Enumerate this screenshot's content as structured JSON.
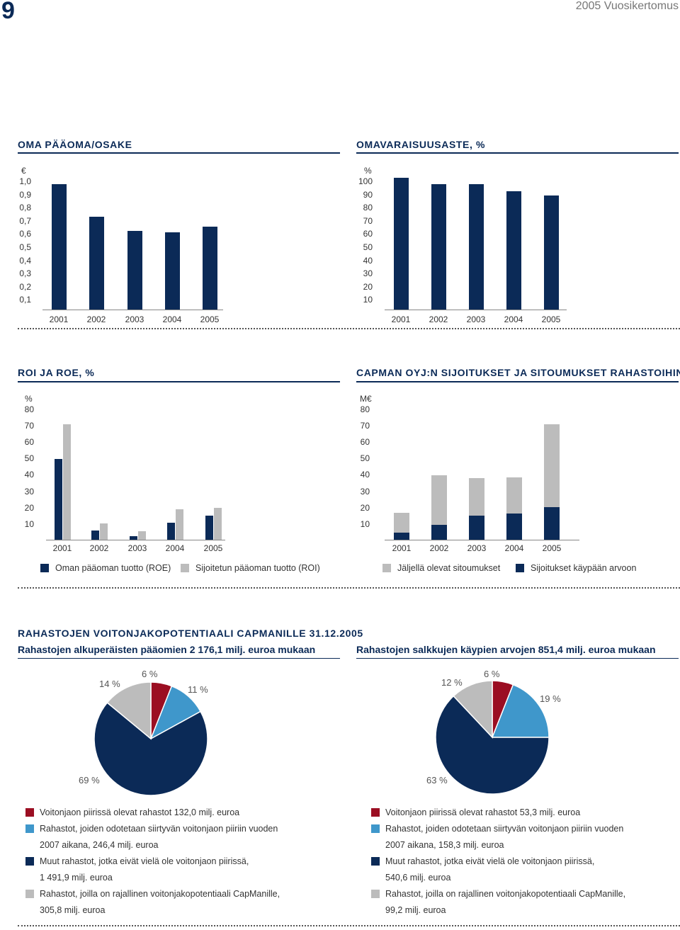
{
  "header": {
    "page_number": "9",
    "running_title": "2005 Vuosikertomus"
  },
  "colors": {
    "navy": "#0b2a57",
    "grey": "#bcbcbc",
    "red": "#9b0e22",
    "blue": "#3f97cb"
  },
  "chart_data": [
    {
      "type": "bar",
      "title": "OMA PÄÄOMA/OSAKE",
      "ylabel": "€",
      "y_ticks": [
        "1,0",
        "0,9",
        "0,8",
        "0,7",
        "0,6",
        "0,5",
        "0,4",
        "0,3",
        "0,2",
        "0,1"
      ],
      "categories": [
        "2001",
        "2002",
        "2003",
        "2004",
        "2005"
      ],
      "values": [
        0.92,
        0.68,
        0.58,
        0.57,
        0.61
      ],
      "ylim": [
        0,
        1.0
      ]
    },
    {
      "type": "bar",
      "title": "OMAVARAISUUSASTE, %",
      "ylabel": "%",
      "y_ticks": [
        "100",
        "90",
        "80",
        "70",
        "60",
        "50",
        "40",
        "30",
        "20",
        "10"
      ],
      "categories": [
        "2001",
        "2002",
        "2003",
        "2004",
        "2005"
      ],
      "values": [
        97,
        92,
        92,
        87,
        84
      ],
      "ylim": [
        0,
        100
      ]
    },
    {
      "type": "bar",
      "title": "ROI JA ROE, %",
      "ylabel": "%",
      "y_ticks": [
        "80",
        "70",
        "60",
        "50",
        "40",
        "30",
        "20",
        "10"
      ],
      "categories": [
        "2001",
        "2002",
        "2003",
        "2004",
        "2005"
      ],
      "series": [
        {
          "name": "Oman pääoman tuotto (ROE)",
          "values": [
            49,
            5.5,
            2,
            10.5,
            14.5
          ]
        },
        {
          "name": "Sijoitetun pääoman tuotto (ROI)",
          "values": [
            70,
            10,
            5,
            18.5,
            19.5
          ]
        }
      ],
      "ylim": [
        0,
        80
      ]
    },
    {
      "type": "bar",
      "title": "CAPMAN OYJ:N SIJOITUKSET JA SITOUMUKSET RAHASTOIHIN",
      "ylabel": "M€",
      "y_ticks": [
        "80",
        "70",
        "60",
        "50",
        "40",
        "30",
        "20",
        "10"
      ],
      "categories": [
        "2001",
        "2002",
        "2003",
        "2004",
        "2005"
      ],
      "series": [
        {
          "name": "Sijoitukset käypään arvoon",
          "values": [
            4.5,
            9,
            14.5,
            16,
            20
          ]
        },
        {
          "name": "Jäljellä olevat sitoumukset",
          "values": [
            12,
            30,
            23,
            22,
            50
          ]
        }
      ],
      "stacked": true,
      "ylim": [
        0,
        80
      ]
    },
    {
      "type": "pie",
      "title": "Rahastojen alkuperäisten pääomien 2 176,1 milj. euroa mukaan",
      "labels": [
        "6 %",
        "11 %",
        "69 %",
        "14 %"
      ],
      "values": [
        6,
        11,
        69,
        14
      ]
    },
    {
      "type": "pie",
      "title": "Rahastojen salkkujen käypien arvojen 851,4 milj. euroa mukaan",
      "labels": [
        "6 %",
        "19 %",
        "63 %",
        "12 %"
      ],
      "values": [
        6,
        19,
        63,
        12
      ]
    }
  ],
  "section3": {
    "heading": "RAHASTOJEN VOITONJAKOPOTENTIAALI CAPMANILLE 31.12.2005",
    "left_legend": [
      "Voitonjaon piirissä olevat rahastot 132,0 milj. euroa",
      "Rahastot, joiden odotetaan siirtyvän voitonjaon piiriin vuoden 2007 aikana, 246,4 milj. euroa",
      "Muut rahastot, jotka eivät vielä ole voitonjaon piirissä, 1 491,9 milj. euroa",
      "Rahastot, joilla on rajallinen voitonjakopotentiaali CapManille, 305,8 milj. euroa"
    ],
    "right_legend": [
      "Voitonjaon piirissä olevat rahastot 53,3 milj. euroa",
      "Rahastot, joiden odotetaan siirtyvän voitonjaon piiriin vuoden 2007 aikana, 158,3 milj. euroa",
      "Muut rahastot, jotka eivät vielä ole voitonjaon piirissä, 540,6 milj. euroa",
      "Rahastot, joilla on rajallinen voitonjakopotentiaali CapManille, 99,2 milj. euroa"
    ]
  }
}
